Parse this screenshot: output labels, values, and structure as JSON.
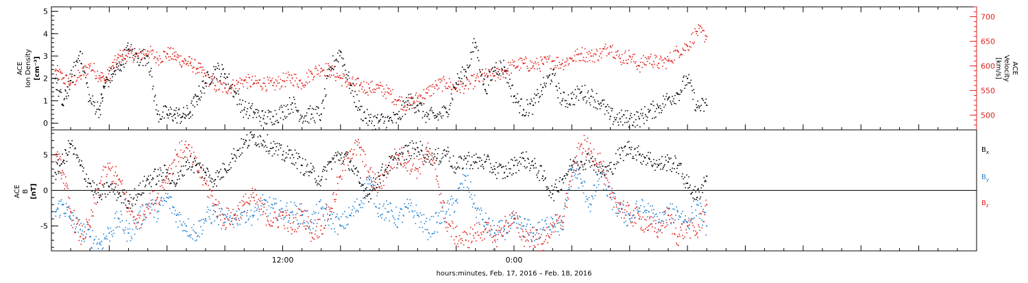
{
  "chart_data": [
    {
      "type": "scatter",
      "panel": "top",
      "left_axis": {
        "label_lines": [
          "ACE",
          "Ion Density"
        ],
        "unit": "[cm⁻³]",
        "ticks": [
          0,
          1,
          2,
          3,
          4,
          5
        ],
        "ylim": [
          -0.3,
          5.2
        ],
        "color": "#000000"
      },
      "right_axis": {
        "label_lines": [
          "ACE",
          "Velocity"
        ],
        "unit": "[km/s]",
        "ticks": [
          500,
          550,
          600,
          650,
          700
        ],
        "ylim": [
          470,
          720
        ],
        "color": "#e0201a"
      },
      "xlim": [
        0,
        48
      ],
      "series": [
        {
          "color": "#000000",
          "axis": "left",
          "x": [
            0.2,
            0.6,
            1.0,
            1.5,
            2.0,
            2.5,
            2.8,
            3.2,
            3.6,
            4.0,
            4.5,
            5.0,
            5.5,
            6.0,
            6.4,
            6.8,
            7.2,
            7.6,
            8.0,
            8.5,
            9.0,
            9.5,
            10.0,
            10.5,
            11.0,
            11.5,
            12.0,
            12.5,
            13.0,
            13.5,
            14.0,
            14.5,
            15.0,
            15.5,
            16.0,
            16.5,
            17.0,
            17.5,
            18.0,
            18.5,
            19.0,
            19.5,
            20.0,
            20.5,
            21.0,
            21.5,
            22.0,
            22.5,
            23.0,
            23.5,
            24.0,
            24.5,
            25.0,
            25.5,
            26.0,
            26.5,
            27.0,
            27.5,
            28.0,
            28.5,
            29.0,
            29.5,
            30.0,
            30.5,
            31.0,
            31.5,
            32.0,
            32.5,
            33.0,
            33.5,
            34.0
          ],
          "y": [
            2.0,
            0.8,
            1.9,
            3.2,
            1.0,
            0.6,
            1.8,
            2.2,
            2.6,
            3.3,
            2.9,
            3.0,
            0.4,
            0.4,
            0.4,
            0.3,
            0.5,
            1.2,
            1.8,
            2.4,
            2.2,
            1.4,
            0.6,
            0.5,
            0.2,
            0.3,
            0.5,
            0.9,
            0.3,
            0.4,
            0.4,
            2.5,
            3.2,
            1.7,
            0.6,
            0.1,
            0.1,
            0.1,
            0.2,
            1.0,
            0.8,
            0.3,
            0.3,
            0.5,
            1.8,
            2.3,
            3.6,
            1.5,
            2.5,
            2.5,
            1.2,
            0.6,
            0.8,
            1.6,
            2.2,
            1.0,
            1.1,
            1.4,
            1.2,
            0.9,
            0.3,
            0.2,
            0.2,
            0.2,
            0.5,
            0.7,
            1.1,
            1.3,
            2.0,
            0.7,
            0.8
          ]
        },
        {
          "color": "#e0201a",
          "axis": "right",
          "x": [
            0.2,
            0.6,
            1.0,
            1.5,
            2.0,
            2.5,
            2.8,
            3.2,
            3.6,
            4.0,
            4.5,
            5.0,
            5.5,
            6.0,
            6.4,
            6.8,
            7.2,
            7.6,
            8.0,
            8.5,
            9.0,
            9.5,
            10.0,
            10.5,
            11.0,
            11.5,
            12.0,
            12.5,
            13.0,
            13.5,
            14.0,
            14.5,
            15.0,
            15.5,
            16.0,
            16.5,
            17.0,
            17.5,
            18.0,
            18.5,
            19.0,
            19.5,
            20.0,
            20.5,
            21.0,
            21.5,
            22.0,
            22.5,
            23.0,
            23.5,
            24.0,
            24.5,
            25.0,
            25.5,
            26.0,
            26.5,
            27.0,
            27.5,
            28.0,
            28.5,
            29.0,
            29.5,
            30.0,
            30.5,
            31.0,
            31.5,
            32.0,
            32.5,
            33.0,
            33.5,
            34.0
          ],
          "y": [
            590,
            575,
            565,
            580,
            600,
            580,
            570,
            600,
            620,
            625,
            620,
            630,
            615,
            625,
            620,
            610,
            605,
            595,
            580,
            560,
            555,
            560,
            570,
            565,
            565,
            560,
            570,
            575,
            565,
            585,
            595,
            590,
            575,
            565,
            560,
            555,
            555,
            545,
            530,
            520,
            535,
            545,
            560,
            565,
            555,
            560,
            570,
            580,
            580,
            590,
            600,
            605,
            600,
            605,
            610,
            605,
            615,
            625,
            620,
            625,
            640,
            615,
            620,
            600,
            615,
            605,
            610,
            630,
            640,
            670,
            660
          ]
        }
      ]
    },
    {
      "type": "scatter",
      "panel": "bottom",
      "left_axis": {
        "label_lines": [
          "ACE",
          "B"
        ],
        "unit": "[nT]",
        "ticks": [
          -5,
          0,
          5
        ],
        "tick_labels": [
          "-5",
          "0",
          "5"
        ],
        "ylim": [
          -8.5,
          8.5
        ],
        "color": "#000000"
      },
      "zero_line": true,
      "xlim": [
        0,
        48
      ],
      "legend": {
        "position": "right",
        "entries": [
          {
            "base": "B",
            "sub": "x",
            "color": "#000000"
          },
          {
            "base": "B",
            "sub": "y",
            "color": "#1e7fd0"
          },
          {
            "base": "B",
            "sub": "z",
            "color": "#e0201a"
          }
        ]
      },
      "series": [
        {
          "name": "Bx",
          "color": "#000000",
          "x": [
            0.2,
            0.6,
            1.0,
            1.5,
            2.0,
            2.5,
            3.0,
            3.5,
            4.0,
            4.5,
            5.0,
            5.5,
            6.0,
            6.5,
            7.0,
            7.5,
            8.0,
            8.5,
            9.0,
            9.5,
            10.0,
            10.5,
            11.0,
            11.5,
            12.0,
            12.5,
            13.0,
            13.5,
            14.0,
            14.5,
            15.0,
            15.5,
            16.0,
            16.5,
            17.0,
            17.5,
            18.0,
            18.5,
            19.0,
            19.5,
            20.0,
            20.5,
            21.0,
            21.5,
            22.0,
            22.5,
            23.0,
            23.5,
            24.0,
            24.5,
            25.0,
            25.5,
            26.0,
            26.5,
            27.0,
            27.5,
            28.0,
            28.5,
            29.0,
            29.5,
            30.0,
            30.5,
            31.0,
            31.5,
            32.0,
            32.5,
            33.0,
            33.5,
            34.0
          ],
          "y": [
            2.5,
            4.0,
            6.5,
            3.5,
            1.0,
            -1.0,
            0.5,
            -0.5,
            -1.5,
            -0.5,
            1.5,
            2.0,
            2.5,
            1.0,
            4.0,
            3.5,
            2.5,
            1.5,
            3.0,
            5.0,
            6.5,
            7.5,
            7.0,
            6.0,
            5.0,
            5.0,
            3.5,
            2.5,
            1.5,
            4.0,
            5.0,
            4.0,
            1.0,
            -0.5,
            2.0,
            3.5,
            4.5,
            5.5,
            6.0,
            5.0,
            4.5,
            5.5,
            3.0,
            4.5,
            4.0,
            4.0,
            3.0,
            2.5,
            3.5,
            4.5,
            3.5,
            2.0,
            -0.5,
            1.5,
            3.5,
            4.0,
            4.5,
            2.5,
            3.0,
            5.0,
            6.0,
            5.0,
            4.5,
            3.5,
            4.0,
            3.5,
            1.0,
            -1.0,
            2.0
          ]
        },
        {
          "name": "By",
          "color": "#1e7fd0",
          "x": [
            0.2,
            0.6,
            1.0,
            1.5,
            2.0,
            2.5,
            3.0,
            3.5,
            4.0,
            4.5,
            5.0,
            5.5,
            6.0,
            6.5,
            7.0,
            7.5,
            8.0,
            8.5,
            9.0,
            9.5,
            10.0,
            10.5,
            11.0,
            11.5,
            12.0,
            12.5,
            13.0,
            13.5,
            14.0,
            14.5,
            15.0,
            15.5,
            16.0,
            16.5,
            17.0,
            17.5,
            18.0,
            18.5,
            19.0,
            19.5,
            20.0,
            20.5,
            21.0,
            21.5,
            22.0,
            22.5,
            23.0,
            23.5,
            24.0,
            24.5,
            25.0,
            25.5,
            26.0,
            26.5,
            27.0,
            27.5,
            28.0,
            28.5,
            29.0,
            29.5,
            30.0,
            30.5,
            31.0,
            31.5,
            32.0,
            32.5,
            33.0,
            33.5,
            34.0
          ],
          "y": [
            -3.0,
            -2.0,
            -4.0,
            -5.5,
            -6.5,
            -7.5,
            -6.0,
            -4.0,
            -6.0,
            -4.5,
            -2.0,
            -3.0,
            -1.0,
            -3.5,
            -5.0,
            -6.0,
            -4.0,
            -3.0,
            -4.5,
            -4.0,
            -3.0,
            -3.5,
            -2.0,
            -2.5,
            -3.0,
            -3.0,
            -3.5,
            -4.5,
            -2.5,
            -4.0,
            -5.0,
            -3.5,
            -2.0,
            1.5,
            -2.5,
            -3.0,
            -4.0,
            -2.5,
            -3.5,
            -5.5,
            -4.5,
            -3.0,
            -1.5,
            2.0,
            -2.5,
            -4.5,
            -6.0,
            -5.5,
            -4.5,
            -5.0,
            -6.0,
            -5.5,
            -4.0,
            -5.5,
            3.0,
            1.0,
            -2.0,
            2.5,
            -1.0,
            -3.0,
            -4.0,
            -2.5,
            -3.0,
            -4.5,
            -3.5,
            -3.0,
            -4.5,
            -2.0,
            -5.0
          ]
        },
        {
          "name": "Bz",
          "color": "#e0201a",
          "x": [
            0.2,
            0.6,
            1.0,
            1.5,
            2.0,
            2.5,
            3.0,
            3.5,
            4.0,
            4.5,
            5.0,
            5.5,
            6.0,
            6.5,
            7.0,
            7.5,
            8.0,
            8.5,
            9.0,
            9.5,
            10.0,
            10.5,
            11.0,
            11.5,
            12.0,
            12.5,
            13.0,
            13.5,
            14.0,
            14.5,
            15.0,
            15.5,
            16.0,
            16.5,
            17.0,
            17.5,
            18.0,
            18.5,
            19.0,
            19.5,
            20.0,
            20.5,
            21.0,
            21.5,
            22.0,
            22.5,
            23.0,
            23.5,
            24.0,
            24.5,
            25.0,
            25.5,
            26.0,
            26.5,
            27.0,
            27.5,
            28.0,
            28.5,
            29.0,
            29.5,
            30.0,
            30.5,
            31.0,
            31.5,
            32.0,
            32.5,
            33.0,
            33.5,
            34.0
          ],
          "y": [
            5.0,
            2.5,
            -3.0,
            -6.5,
            -5.0,
            1.0,
            3.0,
            1.5,
            -2.5,
            -4.5,
            -2.0,
            -1.0,
            2.0,
            5.0,
            6.0,
            3.5,
            1.0,
            -2.0,
            -4.0,
            -3.5,
            -2.0,
            -1.0,
            -3.0,
            -4.5,
            -3.5,
            -5.5,
            -3.0,
            -6.0,
            -5.0,
            -2.5,
            2.0,
            5.5,
            6.0,
            2.0,
            0.5,
            3.5,
            5.0,
            4.0,
            3.0,
            5.5,
            2.0,
            -4.5,
            -6.5,
            -7.0,
            -6.0,
            -5.5,
            -7.0,
            -5.0,
            -4.0,
            -6.5,
            -6.5,
            -7.5,
            -5.0,
            -4.5,
            2.0,
            6.5,
            5.5,
            4.0,
            -1.0,
            -2.0,
            -3.5,
            -4.0,
            -5.0,
            -5.5,
            -3.5,
            -6.5,
            -5.0,
            -6.0,
            -2.0
          ]
        }
      ]
    }
  ],
  "x_axis": {
    "tick_labels": [
      {
        "x": 12,
        "label": "12:00"
      },
      {
        "x": 24,
        "label": "0:00"
      }
    ],
    "title": "hours:minutes, Feb. 17, 2016 – Feb. 18, 2016"
  }
}
